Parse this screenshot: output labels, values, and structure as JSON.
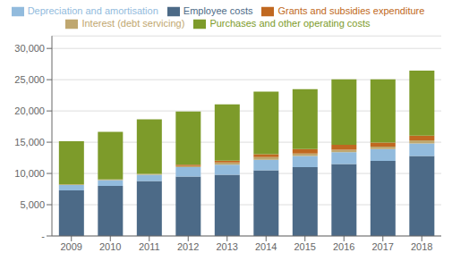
{
  "chart_data": {
    "type": "bar",
    "stacked": true,
    "grid": true,
    "legend": "top",
    "categories": [
      "2009",
      "2010",
      "2011",
      "2012",
      "2013",
      "2014",
      "2015",
      "2016",
      "2017",
      "2018"
    ],
    "series": [
      {
        "name": "Employee costs",
        "color": "#4C6A87",
        "values": [
          7300,
          8000,
          8800,
          9500,
          9800,
          10500,
          11000,
          11500,
          12000,
          12800
        ]
      },
      {
        "name": "Depreciation and amortisation",
        "color": "#92BBDD",
        "values": [
          850,
          950,
          1000,
          1500,
          1600,
          1700,
          1800,
          1900,
          1900,
          2000
        ]
      },
      {
        "name": "Interest (debt servicing)",
        "color": "#BFA76F",
        "values": [
          100,
          100,
          150,
          200,
          350,
          400,
          400,
          400,
          400,
          500
        ]
      },
      {
        "name": "Grants and subsidies expenditure",
        "color": "#C06820",
        "values": [
          0,
          0,
          0,
          200,
          300,
          500,
          700,
          800,
          650,
          750
        ]
      },
      {
        "name": "Purchases and other operating costs",
        "color": "#7D9B2A",
        "values": [
          6900,
          7600,
          8700,
          8500,
          9000,
          10000,
          9600,
          10450,
          10100,
          10400
        ]
      }
    ],
    "ylim": [
      0,
      32000
    ],
    "yticks": [
      {
        "value": 0,
        "label": "-"
      },
      {
        "value": 5000,
        "label": "5,000"
      },
      {
        "value": 10000,
        "label": "10,000"
      },
      {
        "value": 15000,
        "label": "15,000"
      },
      {
        "value": 20000,
        "label": "20,000"
      },
      {
        "value": 25000,
        "label": "25,000"
      },
      {
        "value": 30000,
        "label": "30,000"
      }
    ]
  }
}
